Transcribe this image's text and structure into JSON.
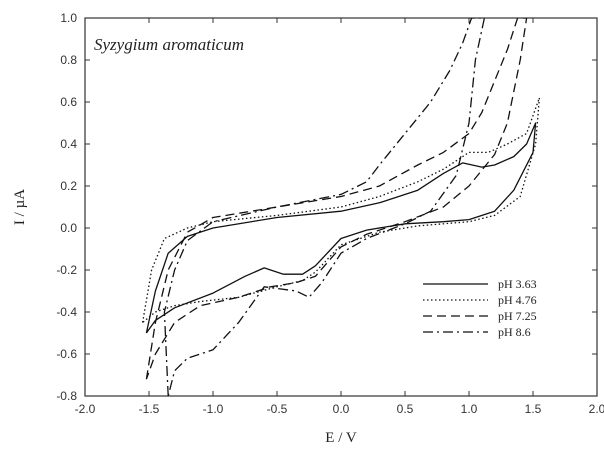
{
  "chart_data": {
    "type": "line",
    "title": "",
    "xlabel": "E / V",
    "ylabel": "I / µA",
    "xlim": [
      -2.0,
      2.0
    ],
    "ylim": [
      -0.8,
      1.0
    ],
    "x_ticks": [
      "-2.0",
      "-1.5",
      "-1.0",
      "-0.5",
      "0.0",
      "0.5",
      "1.0",
      "1.5",
      "2.0"
    ],
    "y_ticks": [
      "-0.8",
      "-0.6",
      "-0.4",
      "-0.2",
      "0.0",
      "0.2",
      "0.4",
      "0.6",
      "0.8",
      "1.0"
    ],
    "grid": false,
    "legend_position": "bottom-right",
    "annotation": "Syzygium aromaticum",
    "series": [
      {
        "name": "pH 3.63",
        "dash": "solid",
        "points": [
          [
            -1.52,
            -0.5
          ],
          [
            -1.45,
            -0.3
          ],
          [
            -1.35,
            -0.12
          ],
          [
            -1.2,
            -0.04
          ],
          [
            -1.0,
            0.0
          ],
          [
            -0.5,
            0.05
          ],
          [
            0.0,
            0.08
          ],
          [
            0.3,
            0.12
          ],
          [
            0.6,
            0.18
          ],
          [
            0.8,
            0.26
          ],
          [
            0.95,
            0.31
          ],
          [
            1.1,
            0.29
          ],
          [
            1.2,
            0.3
          ],
          [
            1.35,
            0.34
          ],
          [
            1.45,
            0.4
          ],
          [
            1.52,
            0.5
          ],
          [
            1.5,
            0.36
          ],
          [
            1.35,
            0.18
          ],
          [
            1.2,
            0.08
          ],
          [
            1.0,
            0.04
          ],
          [
            0.8,
            0.03
          ],
          [
            0.5,
            0.02
          ],
          [
            0.2,
            -0.01
          ],
          [
            0.0,
            -0.05
          ],
          [
            -0.2,
            -0.18
          ],
          [
            -0.3,
            -0.22
          ],
          [
            -0.45,
            -0.22
          ],
          [
            -0.6,
            -0.19
          ],
          [
            -0.75,
            -0.23
          ],
          [
            -1.0,
            -0.31
          ],
          [
            -1.3,
            -0.38
          ],
          [
            -1.45,
            -0.44
          ],
          [
            -1.52,
            -0.5
          ]
        ]
      },
      {
        "name": "pH 4.76",
        "dash": "dotted",
        "points": [
          [
            -1.55,
            -0.45
          ],
          [
            -1.48,
            -0.2
          ],
          [
            -1.38,
            -0.05
          ],
          [
            -1.2,
            0.0
          ],
          [
            -1.0,
            0.03
          ],
          [
            -0.5,
            0.06
          ],
          [
            0.0,
            0.1
          ],
          [
            0.3,
            0.15
          ],
          [
            0.6,
            0.22
          ],
          [
            0.8,
            0.28
          ],
          [
            1.0,
            0.36
          ],
          [
            1.15,
            0.36
          ],
          [
            1.3,
            0.4
          ],
          [
            1.45,
            0.45
          ],
          [
            1.55,
            0.62
          ],
          [
            1.52,
            0.4
          ],
          [
            1.4,
            0.15
          ],
          [
            1.2,
            0.06
          ],
          [
            1.0,
            0.03
          ],
          [
            0.6,
            0.01
          ],
          [
            0.3,
            -0.02
          ],
          [
            0.0,
            -0.08
          ],
          [
            -0.2,
            -0.21
          ],
          [
            -0.3,
            -0.25
          ],
          [
            -0.5,
            -0.28
          ],
          [
            -0.8,
            -0.33
          ],
          [
            -1.1,
            -0.35
          ],
          [
            -1.3,
            -0.37
          ],
          [
            -1.45,
            -0.4
          ],
          [
            -1.55,
            -0.45
          ]
        ]
      },
      {
        "name": "pH 7.25",
        "dash": "dashed",
        "points": [
          [
            -1.52,
            -0.72
          ],
          [
            -1.45,
            -0.45
          ],
          [
            -1.35,
            -0.2
          ],
          [
            -1.2,
            -0.02
          ],
          [
            -1.0,
            0.05
          ],
          [
            -0.5,
            0.1
          ],
          [
            0.0,
            0.15
          ],
          [
            0.3,
            0.2
          ],
          [
            0.6,
            0.3
          ],
          [
            0.8,
            0.36
          ],
          [
            1.0,
            0.45
          ],
          [
            1.1,
            0.55
          ],
          [
            1.2,
            0.7
          ],
          [
            1.3,
            0.85
          ],
          [
            1.38,
            1.0
          ],
          [
            1.45,
            1.0
          ],
          [
            1.4,
            0.8
          ],
          [
            1.3,
            0.5
          ],
          [
            1.2,
            0.35
          ],
          [
            1.0,
            0.2
          ],
          [
            0.8,
            0.1
          ],
          [
            0.5,
            0.03
          ],
          [
            0.2,
            -0.03
          ],
          [
            0.0,
            -0.09
          ],
          [
            -0.2,
            -0.23
          ],
          [
            -0.35,
            -0.26
          ],
          [
            -0.55,
            -0.28
          ],
          [
            -0.8,
            -0.33
          ],
          [
            -1.1,
            -0.37
          ],
          [
            -1.3,
            -0.45
          ],
          [
            -1.45,
            -0.6
          ],
          [
            -1.52,
            -0.72
          ]
        ]
      },
      {
        "name": "pH 8.6",
        "dash": "dash-dot",
        "points": [
          [
            -1.35,
            -0.8
          ],
          [
            -1.38,
            -0.4
          ],
          [
            -1.3,
            -0.2
          ],
          [
            -1.2,
            -0.06
          ],
          [
            -1.0,
            0.03
          ],
          [
            -0.5,
            0.1
          ],
          [
            0.0,
            0.16
          ],
          [
            0.2,
            0.22
          ],
          [
            0.3,
            0.3
          ],
          [
            0.5,
            0.45
          ],
          [
            0.7,
            0.6
          ],
          [
            0.85,
            0.75
          ],
          [
            0.95,
            0.88
          ],
          [
            1.02,
            1.0
          ],
          [
            1.12,
            1.0
          ],
          [
            1.05,
            0.8
          ],
          [
            1.0,
            0.5
          ],
          [
            0.9,
            0.25
          ],
          [
            0.7,
            0.08
          ],
          [
            0.5,
            0.02
          ],
          [
            0.2,
            -0.05
          ],
          [
            0.0,
            -0.12
          ],
          [
            -0.15,
            -0.26
          ],
          [
            -0.25,
            -0.33
          ],
          [
            -0.35,
            -0.3
          ],
          [
            -0.6,
            -0.28
          ],
          [
            -0.8,
            -0.45
          ],
          [
            -1.0,
            -0.58
          ],
          [
            -1.2,
            -0.62
          ],
          [
            -1.3,
            -0.68
          ],
          [
            -1.35,
            -0.8
          ]
        ]
      }
    ]
  }
}
